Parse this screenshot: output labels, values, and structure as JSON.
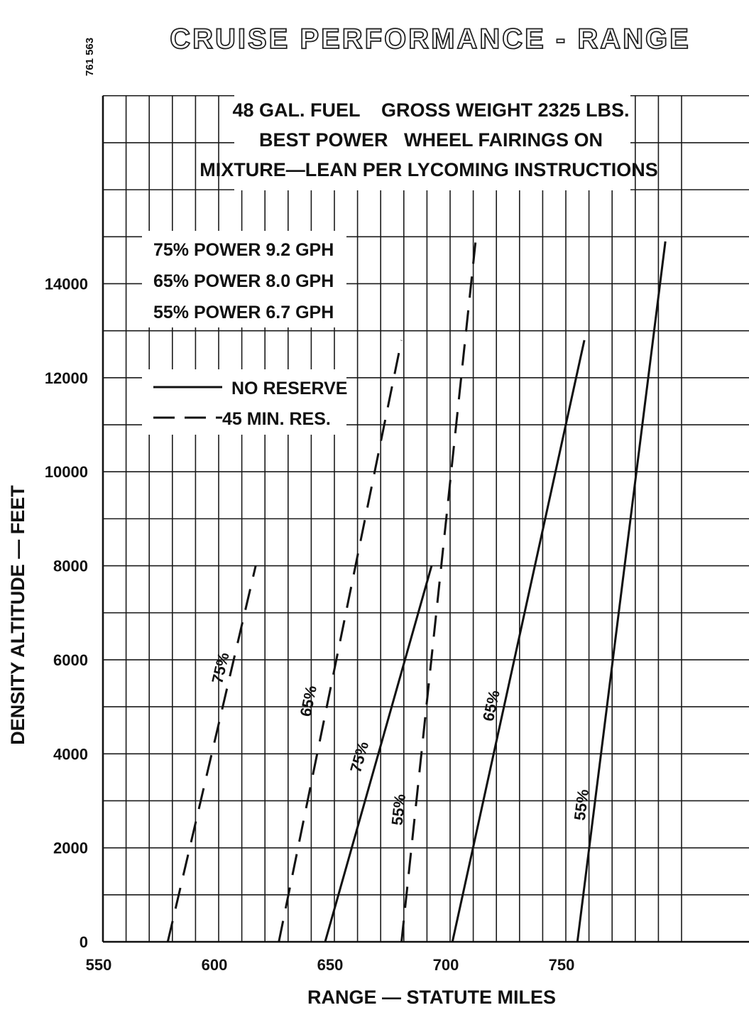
{
  "document_number": "761 563",
  "chart_data": {
    "type": "line",
    "title": "CRUISE PERFORMANCE - RANGE",
    "conditions": [
      "48 GAL. FUEL    GROSS WEIGHT 2325 LBS.",
      "BEST POWER   WHEEL FAIRINGS ON",
      "MIXTURE—LEAN PER LYCOMING INSTRUCTIONS"
    ],
    "power_settings": [
      "75% POWER 9.2 GPH",
      "65% POWER 8.0 GPH",
      "55% POWER 6.7 GPH"
    ],
    "legend": {
      "no_reserve": "NO RESERVE",
      "reserve": "45 MIN. RES."
    },
    "xlabel": "RANGE — STATUTE MILES",
    "ylabel": "DENSITY ALTITUDE — FEET",
    "xlim": [
      550,
      800
    ],
    "ylim": [
      0,
      18000
    ],
    "x_ticks": [
      550,
      600,
      650,
      700,
      750
    ],
    "y_ticks": [
      0,
      2000,
      4000,
      6000,
      8000,
      10000,
      12000,
      14000
    ],
    "grid": true,
    "series": [
      {
        "label": "75%",
        "reserve": "45 MIN. RES.",
        "style": "dashed",
        "points": [
          [
            578,
            0
          ],
          [
            616,
            8000
          ]
        ],
        "label_at": [
          603,
          5800
        ]
      },
      {
        "label": "65%",
        "reserve": "45 MIN. RES.",
        "style": "dashed",
        "points": [
          [
            626,
            0
          ],
          [
            679,
            12800
          ]
        ],
        "label_at": [
          641,
          5100
        ]
      },
      {
        "label": "55%",
        "reserve": "45 MIN. RES.",
        "style": "dashed",
        "points": [
          [
            679,
            0
          ],
          [
            711,
            14900
          ]
        ],
        "label_at": [
          680,
          2800
        ]
      },
      {
        "label": "75%",
        "reserve": "NO RESERVE",
        "style": "solid",
        "points": [
          [
            646,
            0
          ],
          [
            692,
            8000
          ]
        ],
        "label_at": [
          663,
          3900
        ]
      },
      {
        "label": "65%",
        "reserve": "NO RESERVE",
        "style": "solid",
        "points": [
          [
            701,
            0
          ],
          [
            758,
            12800
          ]
        ],
        "label_at": [
          720,
          5000
        ]
      },
      {
        "label": "55%",
        "reserve": "NO RESERVE",
        "style": "solid",
        "points": [
          [
            755,
            0
          ],
          [
            793,
            14900
          ]
        ],
        "label_at": [
          759,
          2900
        ]
      }
    ]
  }
}
